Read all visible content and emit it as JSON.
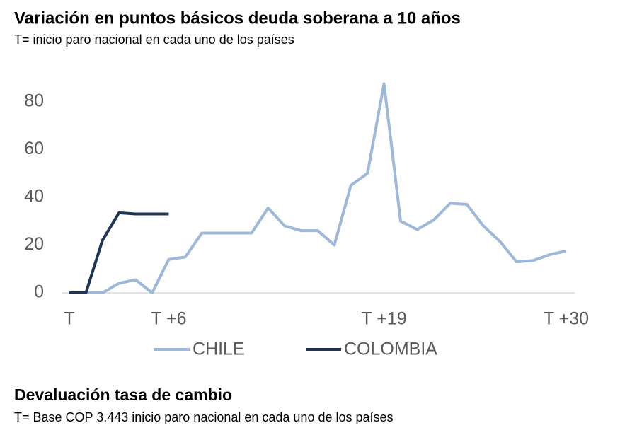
{
  "chart_data": {
    "type": "line",
    "title": "Variación en puntos básicos deuda soberana a 10 años",
    "subtitle": "T= inicio paro nacional en cada uno de los países",
    "categories": [
      "T",
      null,
      null,
      null,
      null,
      null,
      "T +6",
      null,
      null,
      null,
      null,
      null,
      null,
      null,
      null,
      null,
      null,
      null,
      null,
      "T +19",
      null,
      null,
      null,
      null,
      null,
      null,
      null,
      null,
      null,
      null,
      "T +30"
    ],
    "series": [
      {
        "name": "CHILE",
        "color": "#9db8d9",
        "values": [
          0,
          0,
          0,
          4,
          5.5,
          0,
          14,
          15,
          25,
          25,
          25,
          25,
          35.5,
          28,
          26,
          26,
          20,
          45,
          50,
          87.5,
          30,
          26.5,
          30.5,
          37.5,
          37,
          28,
          21.5,
          13,
          13.5,
          16,
          17.5
        ]
      },
      {
        "name": "COLOMBIA",
        "color": "#1f3552",
        "values": [
          0,
          0,
          22,
          33.5,
          33,
          33,
          33,
          null,
          null,
          null,
          null,
          null,
          null,
          null,
          null,
          null,
          null,
          null,
          null,
          null,
          null,
          null,
          null,
          null,
          null,
          null,
          null,
          null,
          null,
          null,
          null
        ]
      }
    ],
    "ylim": [
      0,
      90
    ],
    "yticks": [
      0,
      20,
      40,
      60,
      80
    ],
    "grid": false,
    "legend": "bottom"
  },
  "footer": {
    "title": "Devaluación tasa de cambio",
    "subtitle": "T= Base COP 3.443 inicio paro nacional en cada uno de los países"
  }
}
